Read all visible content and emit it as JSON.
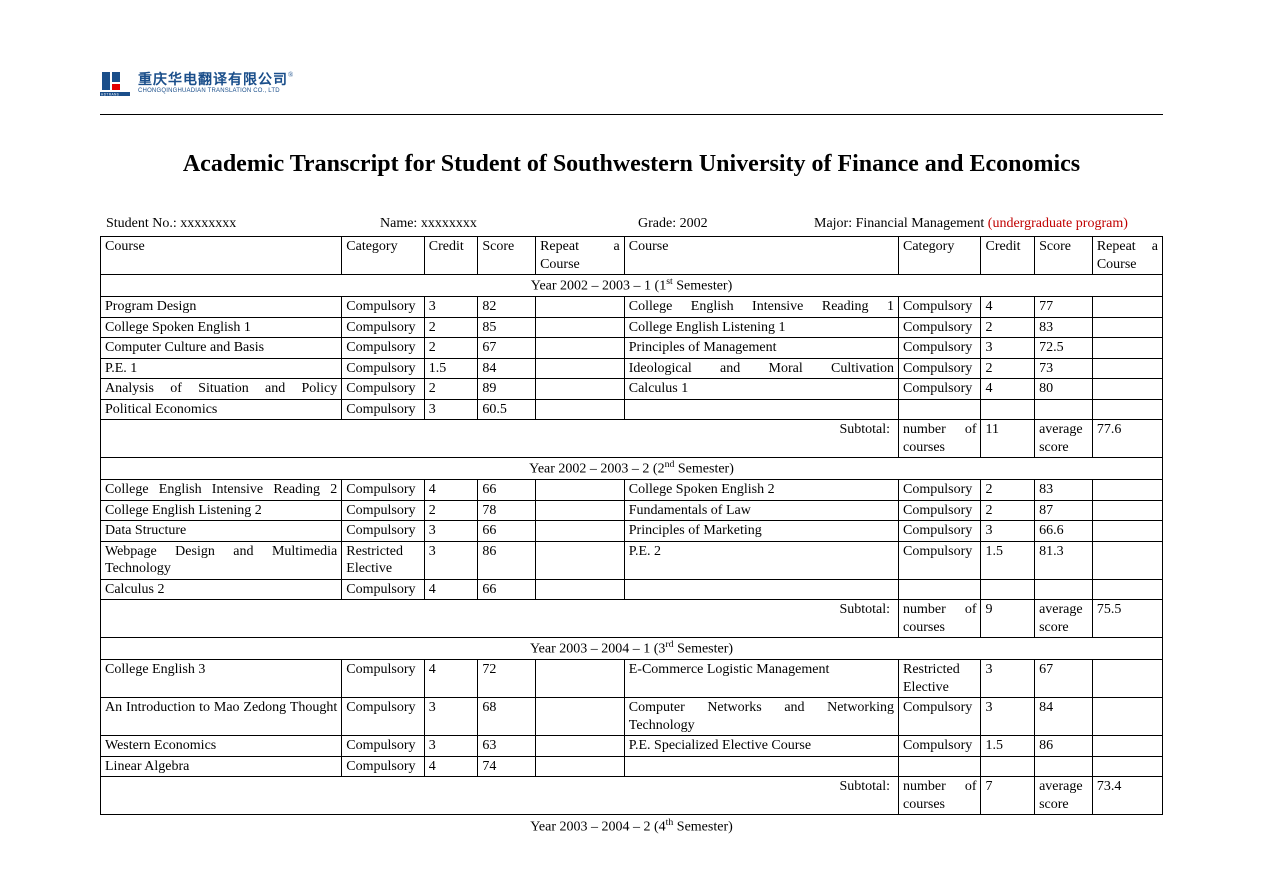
{
  "logo": {
    "cn": "重庆华电翻译有限公司",
    "en": "CHONGQINGHUADIAN TRANSLATION CO., LTD",
    "mark_color": "#1a4e8a",
    "underline": "HDTRANS"
  },
  "title": "Academic Transcript for Student of Southwestern University of Finance and Economics",
  "student": {
    "no_label": "Student No.:",
    "no_value": "xxxxxxxx",
    "name_label": "Name:",
    "name_value": "xxxxxxxx",
    "grade_label": "Grade:",
    "grade_value": "2002",
    "major_label": "Major:",
    "major_value": "Financial Management",
    "program_note": "(undergraduate program)"
  },
  "headers": {
    "course": "Course",
    "category": "Category",
    "credit": "Credit",
    "score": "Score",
    "repeat": "Repeat a Course"
  },
  "semesters": [
    {
      "title_pre": "Year 2002 – 2003 – 1 (1",
      "title_sup": "st",
      "title_post": " Semester)",
      "rows": [
        {
          "l": {
            "course": "Program Design",
            "cat": "Compulsory",
            "credit": "3",
            "score": "82",
            "repeat": ""
          },
          "r": {
            "course": "College English Intensive Reading 1",
            "cat": "Compulsory",
            "credit": "4",
            "score": "77",
            "repeat": ""
          }
        },
        {
          "l": {
            "course": "College Spoken English 1",
            "cat": "Compulsory",
            "credit": "2",
            "score": "85",
            "repeat": ""
          },
          "r": {
            "course": "College English Listening 1",
            "cat": "Compulsory",
            "credit": "2",
            "score": "83",
            "repeat": ""
          }
        },
        {
          "l": {
            "course": "Computer Culture and Basis",
            "cat": "Compulsory",
            "credit": "2",
            "score": "67",
            "repeat": ""
          },
          "r": {
            "course": "Principles of Management",
            "cat": "Compulsory",
            "credit": "3",
            "score": "72.5",
            "repeat": ""
          }
        },
        {
          "l": {
            "course": "P.E. 1",
            "cat": "Compulsory",
            "credit": "1.5",
            "score": "84",
            "repeat": ""
          },
          "r": {
            "course": "Ideological and Moral Cultivation",
            "cat": "Compulsory",
            "credit": "2",
            "score": "73",
            "repeat": ""
          }
        },
        {
          "l": {
            "course": "Analysis of Situation and Policy",
            "cat": "Compulsory",
            "credit": "2",
            "score": "89",
            "repeat": ""
          },
          "r": {
            "course": "Calculus 1",
            "cat": "Compulsory",
            "credit": "4",
            "score": "80",
            "repeat": ""
          }
        },
        {
          "l": {
            "course": "Political Economics",
            "cat": "Compulsory",
            "credit": "3",
            "score": "60.5",
            "repeat": ""
          },
          "r": {
            "course": "",
            "cat": "",
            "credit": "",
            "score": "",
            "repeat": ""
          }
        }
      ],
      "subtotal": {
        "label": "Subtotal:",
        "num_label": "number of courses",
        "num": "11",
        "avg_label": "average score",
        "avg": "77.6"
      }
    },
    {
      "title_pre": "Year 2002 – 2003 – 2 (2",
      "title_sup": "nd",
      "title_post": " Semester)",
      "rows": [
        {
          "l": {
            "course": "College English Intensive Reading 2",
            "cat": "Compulsory",
            "credit": "4",
            "score": "66",
            "repeat": ""
          },
          "r": {
            "course": "College Spoken English 2",
            "cat": "Compulsory",
            "credit": "2",
            "score": "83",
            "repeat": ""
          }
        },
        {
          "l": {
            "course": "College English Listening 2",
            "cat": "Compulsory",
            "credit": "2",
            "score": "78",
            "repeat": ""
          },
          "r": {
            "course": "Fundamentals of Law",
            "cat": "Compulsory",
            "credit": "2",
            "score": "87",
            "repeat": ""
          }
        },
        {
          "l": {
            "course": "Data Structure",
            "cat": "Compulsory",
            "credit": "3",
            "score": "66",
            "repeat": ""
          },
          "r": {
            "course": "Principles of Marketing",
            "cat": "Compulsory",
            "credit": "3",
            "score": "66.6",
            "repeat": ""
          }
        },
        {
          "l": {
            "course": "Webpage Design and Multimedia Technology",
            "cat": "Restricted Elective",
            "credit": "3",
            "score": "86",
            "repeat": ""
          },
          "r": {
            "course": "P.E. 2",
            "cat": "Compulsory",
            "credit": "1.5",
            "score": "81.3",
            "repeat": ""
          }
        },
        {
          "l": {
            "course": "Calculus 2",
            "cat": "Compulsory",
            "credit": "4",
            "score": "66",
            "repeat": ""
          },
          "r": {
            "course": "",
            "cat": "",
            "credit": "",
            "score": "",
            "repeat": ""
          }
        }
      ],
      "subtotal": {
        "label": "Subtotal:",
        "num_label": "number of courses",
        "num": "9",
        "avg_label": "average score",
        "avg": "75.5"
      }
    },
    {
      "title_pre": "Year 2003 – 2004 – 1 (3",
      "title_sup": "rd",
      "title_post": " Semester)",
      "rows": [
        {
          "l": {
            "course": "College English 3",
            "cat": "Compulsory",
            "credit": "4",
            "score": "72",
            "repeat": ""
          },
          "r": {
            "course": "E-Commerce Logistic Management",
            "cat": "Restricted Elective",
            "credit": "3",
            "score": "67",
            "repeat": ""
          }
        },
        {
          "l": {
            "course": "An Introduction to Mao Zedong Thought",
            "cat": "Compulsory",
            "credit": "3",
            "score": "68",
            "repeat": ""
          },
          "r": {
            "course": "Computer Networks and Networking Technology",
            "cat": "Compulsory",
            "credit": "3",
            "score": "84",
            "repeat": ""
          }
        },
        {
          "l": {
            "course": "Western Economics",
            "cat": "Compulsory",
            "credit": "3",
            "score": "63",
            "repeat": ""
          },
          "r": {
            "course": "P.E. Specialized Elective Course",
            "cat": "Compulsory",
            "credit": "1.5",
            "score": "86",
            "repeat": ""
          }
        },
        {
          "l": {
            "course": "Linear Algebra",
            "cat": "Compulsory",
            "credit": "4",
            "score": "74",
            "repeat": ""
          },
          "r": {
            "course": "",
            "cat": "",
            "credit": "",
            "score": "",
            "repeat": ""
          }
        }
      ],
      "subtotal": {
        "label": "Subtotal:",
        "num_label": "number of courses",
        "num": "7",
        "avg_label": "average score",
        "avg": "73.4"
      }
    }
  ],
  "next_semester": {
    "title_pre": "Year 2003 – 2004 – 2 (4",
    "title_sup": "th",
    "title_post": " Semester)"
  }
}
